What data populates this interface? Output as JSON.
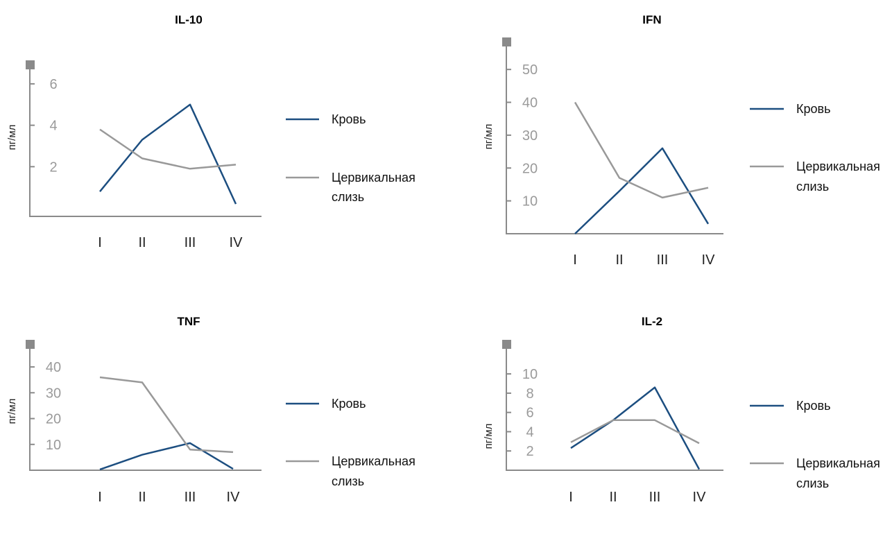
{
  "chart_data": [
    {
      "type": "line",
      "title": "IL-10",
      "ylabel": "пг/мл",
      "categories": [
        "I",
        "II",
        "III",
        "IV"
      ],
      "yticks": [
        "2",
        "4",
        "6"
      ],
      "ylim": [
        -0.4,
        6.7
      ],
      "series": [
        {
          "name": "Кровь",
          "color": "#1c4e80",
          "values": [
            0.8,
            3.3,
            5.0,
            0.2
          ]
        },
        {
          "name": "Цервикальная слизь",
          "color": "#999999",
          "values": [
            3.8,
            2.4,
            1.9,
            2.1
          ]
        }
      ],
      "legend": [
        "Кровь",
        "Цервикальная",
        "слизь"
      ]
    },
    {
      "type": "line",
      "title": "IFN",
      "ylabel": "пг/мл",
      "categories": [
        "I",
        "II",
        "III",
        "IV"
      ],
      "yticks": [
        "10",
        "20",
        "30",
        "40",
        "50"
      ],
      "ylim": [
        0,
        57
      ],
      "series": [
        {
          "name": "Кровь",
          "color": "#1c4e80",
          "values": [
            0,
            13,
            26,
            3
          ]
        },
        {
          "name": "Цервикальная слизь",
          "color": "#999999",
          "values": [
            40,
            17,
            11,
            14
          ]
        }
      ],
      "legend": [
        "Кровь",
        "Цервикальная",
        "слизь"
      ]
    },
    {
      "type": "line",
      "title": "TNF",
      "ylabel": "пг/мл",
      "categories": [
        "I",
        "II",
        "III",
        "IV"
      ],
      "yticks": [
        "10",
        "20",
        "30",
        "40"
      ],
      "ylim": [
        0,
        47
      ],
      "series": [
        {
          "name": "Кровь",
          "color": "#1c4e80",
          "values": [
            0.3,
            6,
            10.5,
            0.5
          ]
        },
        {
          "name": "Цервикальная слизь",
          "color": "#999999",
          "values": [
            36,
            34,
            8,
            7
          ]
        }
      ],
      "legend": [
        "Кровь",
        "Цервикальная",
        "слизь"
      ]
    },
    {
      "type": "line",
      "title": "IL-2",
      "ylabel": "пг/мл",
      "categories": [
        "I",
        "II",
        "III",
        "IV"
      ],
      "yticks": [
        "2",
        "4",
        "6",
        "8",
        "10"
      ],
      "ylim": [
        0,
        12.6
      ],
      "series": [
        {
          "name": "Кровь",
          "color": "#1c4e80",
          "values": [
            2.3,
            5.2,
            8.6,
            0.1
          ]
        },
        {
          "name": "Цервикальная слизь",
          "color": "#999999",
          "values": [
            2.9,
            5.2,
            5.2,
            2.8
          ]
        }
      ],
      "legend": [
        "Кровь",
        "Цервикальная",
        "слизь"
      ]
    }
  ]
}
